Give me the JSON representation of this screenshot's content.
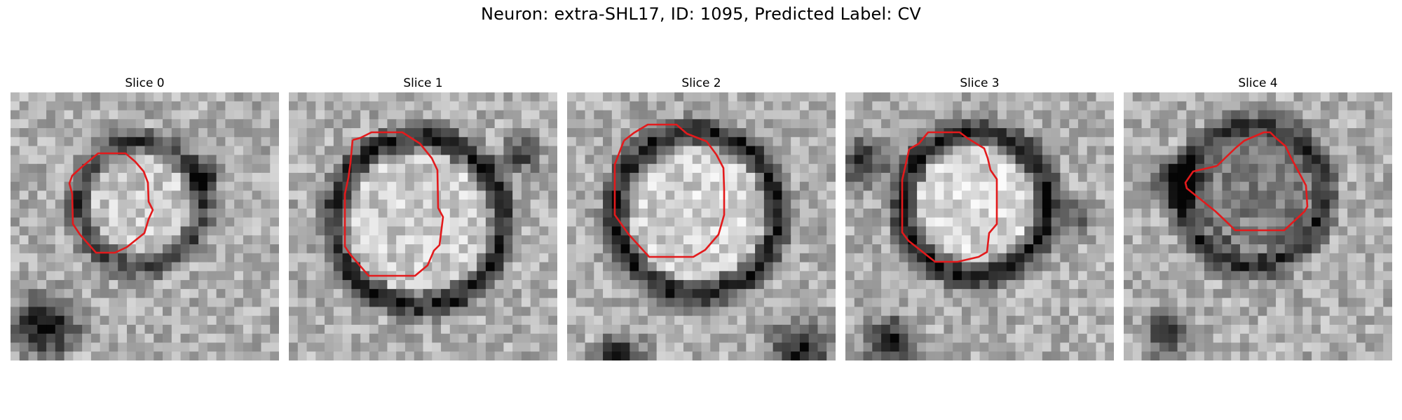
{
  "figure": {
    "title": "Neuron: extra-SHL17, ID: 1095, Predicted Label: CV"
  },
  "colors": {
    "contour": "#e31a1c",
    "background": "#ffffff"
  },
  "panels": [
    {
      "title": "Slice 0",
      "ring_darkness": "medium",
      "inner_brightness": "high"
    },
    {
      "title": "Slice 1",
      "ring_darkness": "high",
      "inner_brightness": "high"
    },
    {
      "title": "Slice 2",
      "ring_darkness": "high",
      "inner_brightness": "high"
    },
    {
      "title": "Slice 3",
      "ring_darkness": "high",
      "inner_brightness": "high"
    },
    {
      "title": "Slice 4",
      "ring_darkness": "medium",
      "inner_brightness": "low"
    }
  ]
}
